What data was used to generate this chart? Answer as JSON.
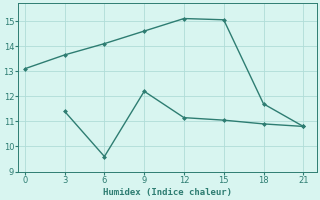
{
  "line1_x": [
    0,
    3,
    6,
    9,
    12,
    15,
    18,
    21
  ],
  "line1_y": [
    13.1,
    13.65,
    14.1,
    14.6,
    15.1,
    15.05,
    11.7,
    10.8
  ],
  "line2_x": [
    3,
    6,
    9,
    12,
    15,
    18,
    21
  ],
  "line2_y": [
    11.4,
    9.6,
    12.2,
    11.15,
    11.05,
    10.9,
    10.8
  ],
  "line_color": "#2e7d72",
  "grid_color": "#b0ddd8",
  "background_color": "#d8f5f0",
  "xlabel": "Humidex (Indice chaleur)",
  "xlim": [
    -0.5,
    22
  ],
  "ylim": [
    9,
    15.7
  ],
  "xticks": [
    0,
    3,
    6,
    9,
    12,
    15,
    18,
    21
  ],
  "yticks": [
    9,
    10,
    11,
    12,
    13,
    14,
    15
  ],
  "xlabel_fontsize": 6.5,
  "tick_fontsize": 6.0,
  "linewidth": 1.0,
  "markersize": 2.5
}
